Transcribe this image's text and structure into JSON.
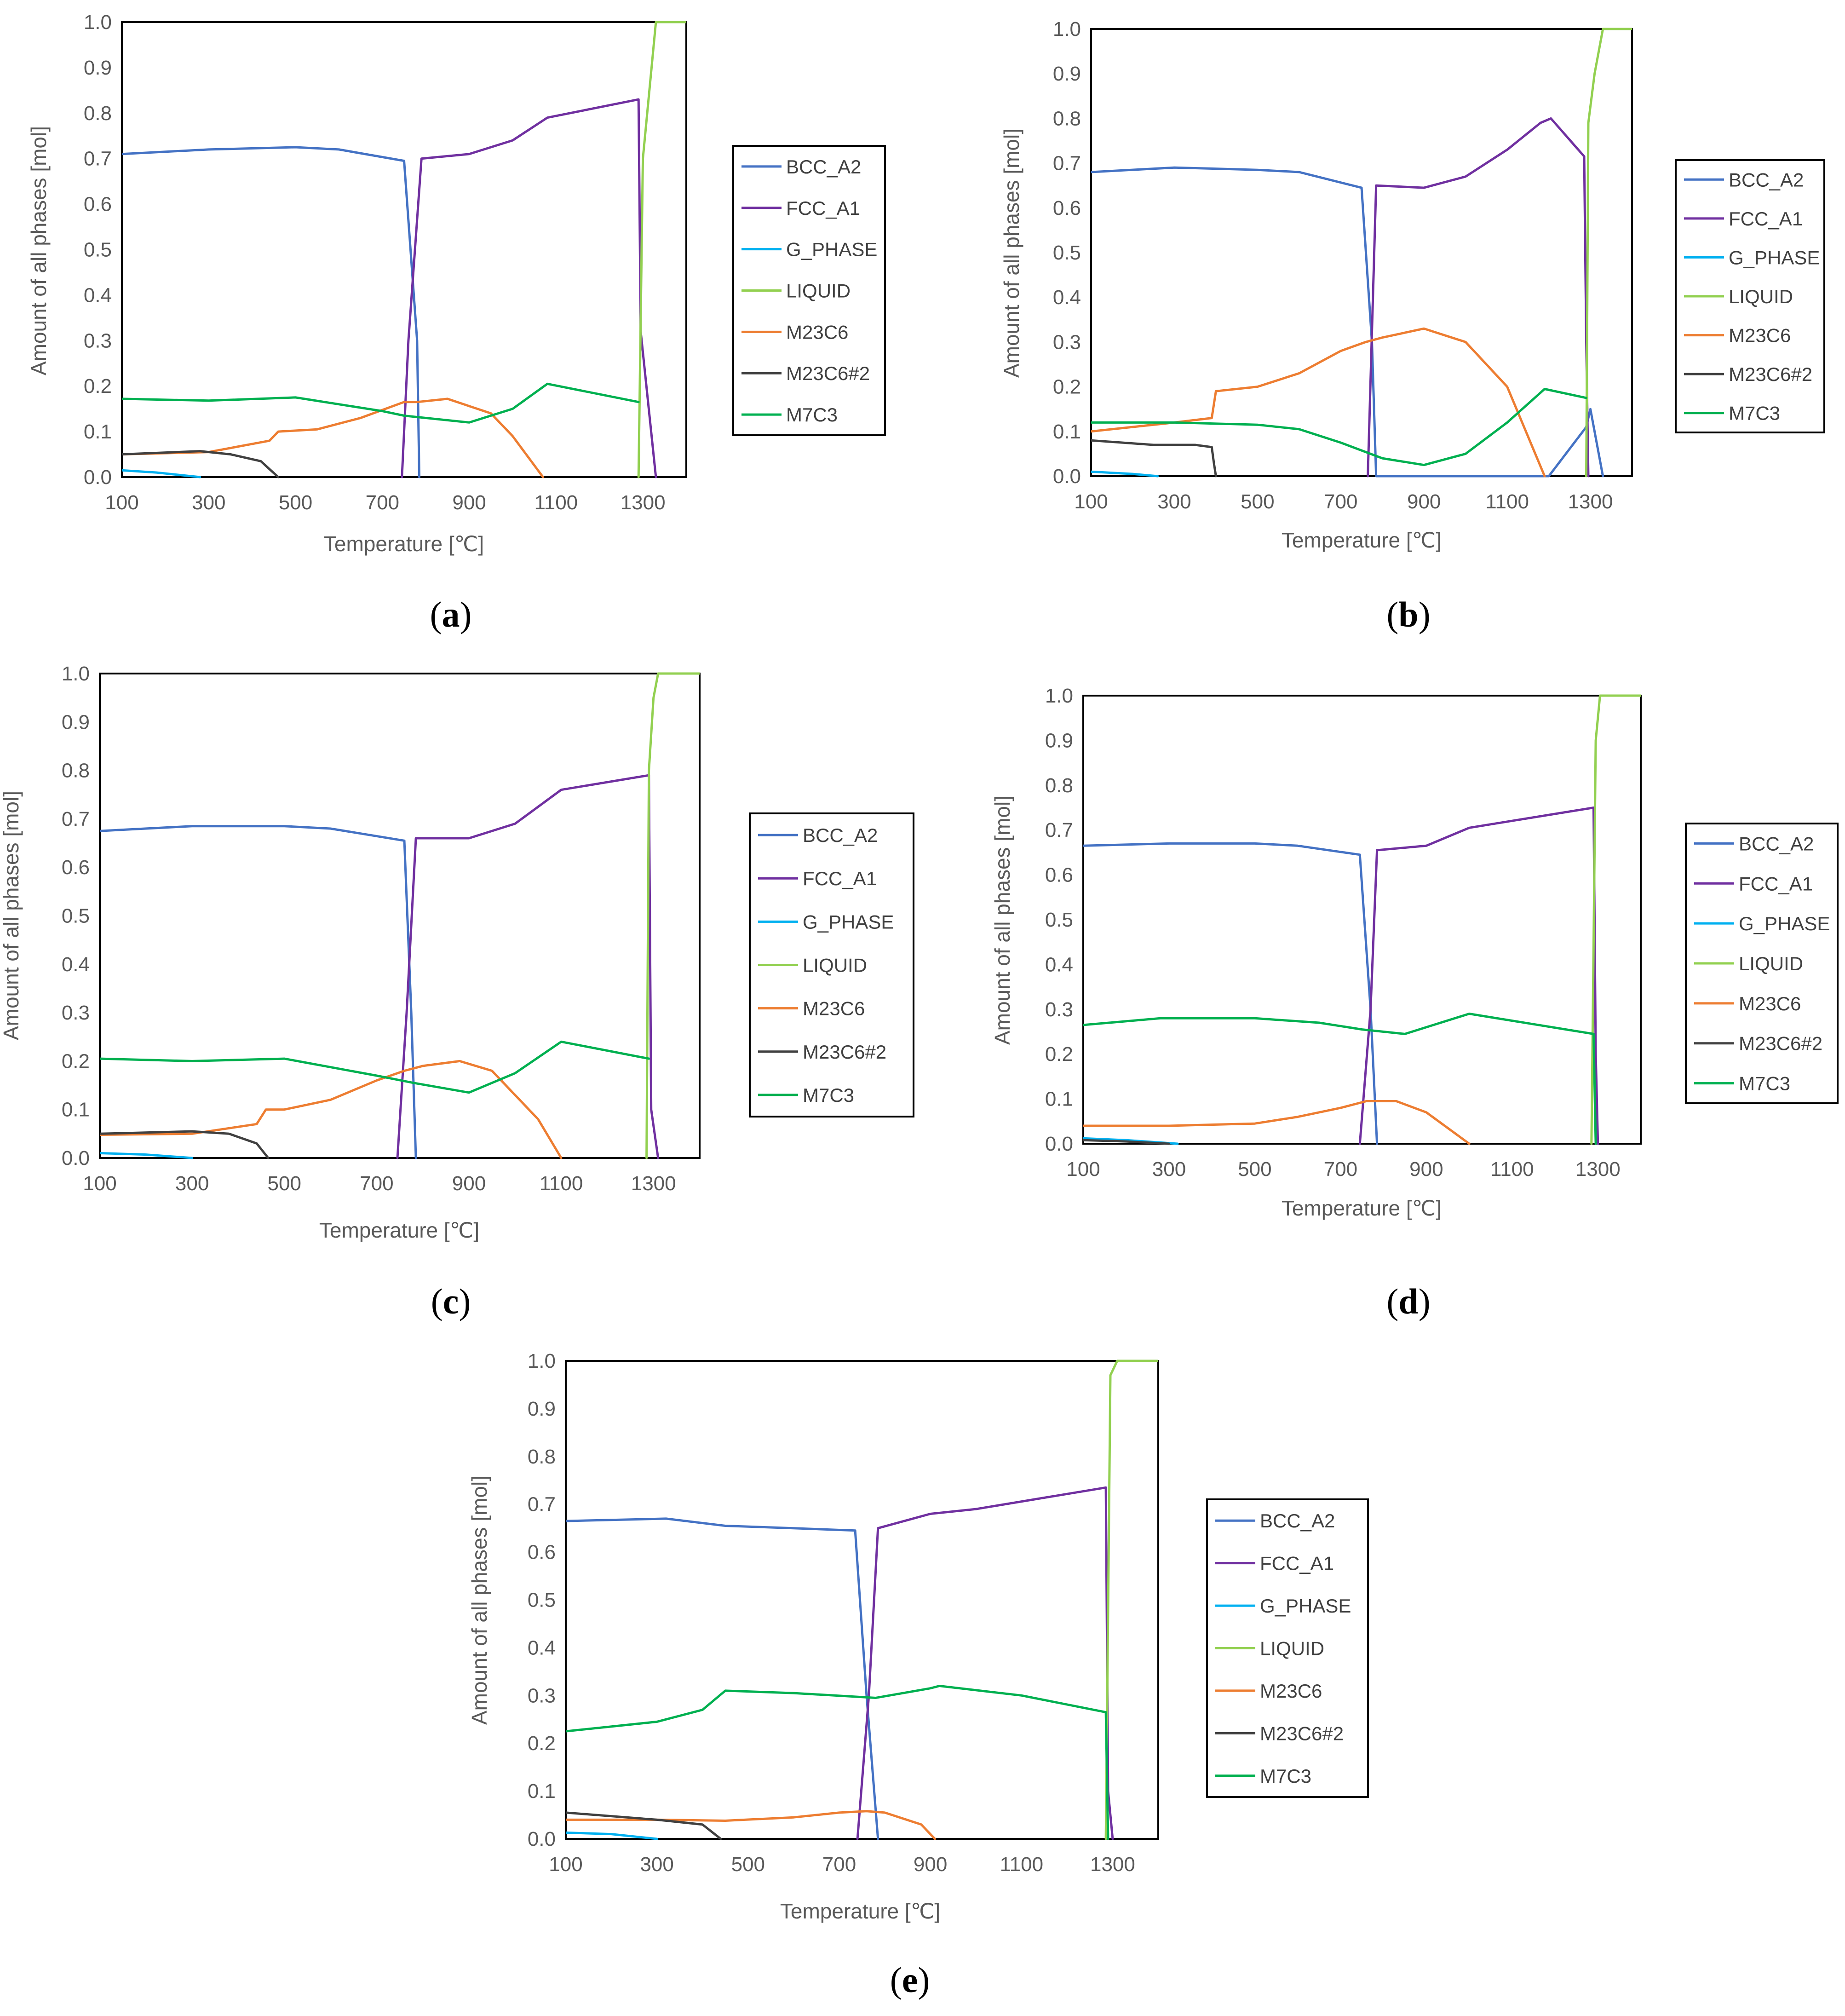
{
  "figure": {
    "series_colors": {
      "BCC_A2": "#4472C4",
      "FCC_A1": "#7030A0",
      "G_PHASE": "#00B0F0",
      "LIQUID": "#92D050",
      "M23C6": "#ED7D31",
      "M23C6#2": "#404040",
      "M7C3": "#00B050"
    }
  },
  "chart_data": [
    {
      "panel": "a",
      "type": "line",
      "xlabel": "Temperature [℃]",
      "ylabel": "Amount of all phases [mol]",
      "xlim": [
        100,
        1400
      ],
      "ylim": [
        0.0,
        1.0
      ],
      "x_tick_labels": [
        "100",
        "300",
        "500",
        "700",
        "900",
        "1100",
        "1300"
      ],
      "y_tick_labels": [
        "0.0",
        "0.1",
        "0.2",
        "0.3",
        "0.4",
        "0.5",
        "0.6",
        "0.7",
        "0.8",
        "0.9",
        "1.0"
      ],
      "legend": [
        "BCC_A2",
        "FCC_A1",
        "G_PHASE",
        "LIQUID",
        "M23C6",
        "M23C6#2",
        "M7C3"
      ],
      "legend_position": "right",
      "grid": false,
      "series": [
        {
          "name": "BCC_A2",
          "x": [
            100,
            300,
            500,
            600,
            750,
            780,
            785
          ],
          "y": [
            0.71,
            0.72,
            0.725,
            0.72,
            0.695,
            0.3,
            0.0
          ]
        },
        {
          "name": "FCC_A1",
          "x": [
            745,
            760,
            790,
            900,
            1000,
            1080,
            1290,
            1295,
            1330
          ],
          "y": [
            0.0,
            0.3,
            0.7,
            0.71,
            0.74,
            0.79,
            0.83,
            0.32,
            0.0
          ]
        },
        {
          "name": "G_PHASE",
          "x": [
            100,
            180,
            280
          ],
          "y": [
            0.015,
            0.01,
            0.0
          ]
        },
        {
          "name": "LIQUID",
          "x": [
            1290,
            1300,
            1320,
            1330,
            1400
          ],
          "y": [
            0.0,
            0.7,
            0.9,
            1.0,
            1.0
          ]
        },
        {
          "name": "M23C6",
          "x": [
            100,
            300,
            440,
            460,
            550,
            650,
            750,
            780,
            850,
            950,
            1000,
            1070
          ],
          "y": [
            0.05,
            0.055,
            0.08,
            0.1,
            0.105,
            0.13,
            0.165,
            0.165,
            0.172,
            0.14,
            0.09,
            0.0
          ]
        },
        {
          "name": "M23C6#2",
          "x": [
            100,
            280,
            350,
            420,
            460
          ],
          "y": [
            0.05,
            0.057,
            0.05,
            0.035,
            0.0
          ]
        },
        {
          "name": "M7C3",
          "x": [
            100,
            300,
            500,
            700,
            750,
            900,
            1000,
            1080,
            1290
          ],
          "y": [
            0.172,
            0.168,
            0.175,
            0.145,
            0.135,
            0.12,
            0.15,
            0.205,
            0.165
          ]
        }
      ]
    },
    {
      "panel": "b",
      "type": "line",
      "xlabel": "Temperature [℃]",
      "ylabel": "Amount of all phases [mol]",
      "xlim": [
        100,
        1400
      ],
      "ylim": [
        0.0,
        1.0
      ],
      "x_tick_labels": [
        "100",
        "300",
        "500",
        "700",
        "900",
        "1100",
        "1300"
      ],
      "y_tick_labels": [
        "0.0",
        "0.1",
        "0.2",
        "0.3",
        "0.4",
        "0.5",
        "0.6",
        "0.7",
        "0.8",
        "0.9",
        "1.0"
      ],
      "legend": [
        "BCC_A2",
        "FCC_A1",
        "G_PHASE",
        "LIQUID",
        "M23C6",
        "M23C6#2",
        "M7C3"
      ],
      "legend_position": "right",
      "grid": false,
      "series": [
        {
          "name": "BCC_A2",
          "x": [
            100,
            300,
            500,
            600,
            750,
            775,
            785,
            1200,
            1290,
            1300,
            1330
          ],
          "y": [
            0.68,
            0.69,
            0.685,
            0.68,
            0.645,
            0.3,
            0.0,
            0.0,
            0.11,
            0.15,
            0.0
          ]
        },
        {
          "name": "FCC_A1",
          "x": [
            765,
            785,
            900,
            1000,
            1100,
            1180,
            1205,
            1285,
            1290,
            1295
          ],
          "y": [
            0.0,
            0.65,
            0.645,
            0.67,
            0.73,
            0.79,
            0.8,
            0.715,
            0.3,
            0.0
          ]
        },
        {
          "name": "G_PHASE",
          "x": [
            100,
            200,
            260
          ],
          "y": [
            0.01,
            0.005,
            0.0
          ]
        },
        {
          "name": "LIQUID",
          "x": [
            1290,
            1295,
            1310,
            1330,
            1400
          ],
          "y": [
            0.0,
            0.79,
            0.9,
            1.0,
            1.0
          ]
        },
        {
          "name": "M23C6",
          "x": [
            100,
            300,
            390,
            400,
            500,
            600,
            700,
            760,
            800,
            900,
            1000,
            1100,
            1190
          ],
          "y": [
            0.1,
            0.12,
            0.13,
            0.19,
            0.2,
            0.23,
            0.28,
            0.3,
            0.31,
            0.33,
            0.3,
            0.2,
            0.0
          ]
        },
        {
          "name": "M23C6#2",
          "x": [
            100,
            250,
            350,
            390,
            395,
            400
          ],
          "y": [
            0.08,
            0.07,
            0.07,
            0.065,
            0.03,
            0.0
          ]
        },
        {
          "name": "M7C3",
          "x": [
            100,
            300,
            500,
            600,
            700,
            800,
            900,
            1000,
            1100,
            1190,
            1290
          ],
          "y": [
            0.12,
            0.12,
            0.115,
            0.105,
            0.075,
            0.04,
            0.025,
            0.05,
            0.12,
            0.195,
            0.175
          ]
        }
      ]
    },
    {
      "panel": "c",
      "type": "line",
      "xlabel": "Temperature [℃]",
      "ylabel": "Amount of all phases [mol]",
      "xlim": [
        100,
        1400
      ],
      "ylim": [
        0.0,
        1.0
      ],
      "x_tick_labels": [
        "100",
        "300",
        "500",
        "700",
        "900",
        "1100",
        "1300"
      ],
      "y_tick_labels": [
        "0.0",
        "0.1",
        "0.2",
        "0.3",
        "0.4",
        "0.5",
        "0.6",
        "0.7",
        "0.8",
        "0.9",
        "1.0"
      ],
      "legend": [
        "BCC_A2",
        "FCC_A1",
        "G_PHASE",
        "LIQUID",
        "M23C6",
        "M23C6#2",
        "M7C3"
      ],
      "legend_position": "right",
      "grid": false,
      "series": [
        {
          "name": "BCC_A2",
          "x": [
            100,
            300,
            500,
            600,
            760,
            775,
            785
          ],
          "y": [
            0.675,
            0.685,
            0.685,
            0.68,
            0.655,
            0.3,
            0.0
          ]
        },
        {
          "name": "FCC_A1",
          "x": [
            745,
            765,
            785,
            900,
            1000,
            1100,
            1290,
            1295,
            1310
          ],
          "y": [
            0.0,
            0.3,
            0.66,
            0.66,
            0.69,
            0.76,
            0.79,
            0.1,
            0.0
          ]
        },
        {
          "name": "G_PHASE",
          "x": [
            100,
            200,
            300
          ],
          "y": [
            0.01,
            0.007,
            0.0
          ]
        },
        {
          "name": "LIQUID",
          "x": [
            1285,
            1290,
            1300,
            1310,
            1400
          ],
          "y": [
            0.0,
            0.8,
            0.95,
            1.0,
            1.0
          ]
        },
        {
          "name": "M23C6",
          "x": [
            100,
            300,
            440,
            460,
            500,
            600,
            700,
            760,
            800,
            880,
            950,
            1050,
            1100
          ],
          "y": [
            0.048,
            0.05,
            0.07,
            0.1,
            0.1,
            0.12,
            0.16,
            0.18,
            0.19,
            0.2,
            0.18,
            0.08,
            0.0
          ]
        },
        {
          "name": "M23C6#2",
          "x": [
            100,
            300,
            380,
            440,
            465
          ],
          "y": [
            0.05,
            0.055,
            0.05,
            0.03,
            0.0
          ]
        },
        {
          "name": "M7C3",
          "x": [
            100,
            300,
            500,
            700,
            780,
            900,
            1000,
            1100,
            1290
          ],
          "y": [
            0.205,
            0.2,
            0.205,
            0.17,
            0.155,
            0.135,
            0.175,
            0.24,
            0.205
          ]
        }
      ]
    },
    {
      "panel": "d",
      "type": "line",
      "xlabel": "Temperature [℃]",
      "ylabel": "Amount of all phases [mol]",
      "xlim": [
        100,
        1400
      ],
      "ylim": [
        0.0,
        1.0
      ],
      "x_tick_labels": [
        "100",
        "300",
        "500",
        "700",
        "900",
        "1100",
        "1300"
      ],
      "y_tick_labels": [
        "0.0",
        "0.1",
        "0.2",
        "0.3",
        "0.4",
        "0.5",
        "0.6",
        "0.7",
        "0.8",
        "0.9",
        "1.0"
      ],
      "legend": [
        "BCC_A2",
        "FCC_A1",
        "G_PHASE",
        "LIQUID",
        "M23C6",
        "M23C6#2",
        "M7C3"
      ],
      "legend_position": "right",
      "grid": false,
      "series": [
        {
          "name": "BCC_A2",
          "x": [
            100,
            300,
            500,
            600,
            745,
            770,
            785
          ],
          "y": [
            0.665,
            0.67,
            0.67,
            0.665,
            0.645,
            0.3,
            0.0
          ]
        },
        {
          "name": "FCC_A1",
          "x": [
            745,
            770,
            785,
            900,
            1000,
            1290,
            1295,
            1300
          ],
          "y": [
            0.0,
            0.3,
            0.655,
            0.665,
            0.705,
            0.75,
            0.2,
            0.0
          ]
        },
        {
          "name": "G_PHASE",
          "x": [
            100,
            200,
            320
          ],
          "y": [
            0.012,
            0.008,
            0.0
          ]
        },
        {
          "name": "LIQUID",
          "x": [
            1285,
            1295,
            1305,
            1400
          ],
          "y": [
            0.0,
            0.9,
            1.0,
            1.0
          ]
        },
        {
          "name": "M23C6",
          "x": [
            100,
            300,
            500,
            600,
            700,
            760,
            830,
            900,
            1000
          ],
          "y": [
            0.04,
            0.04,
            0.045,
            0.06,
            0.08,
            0.095,
            0.095,
            0.07,
            0.0
          ]
        },
        {
          "name": "M23C6#2",
          "x": [
            100,
            200,
            300
          ],
          "y": [
            0.008,
            0.005,
            0.0
          ]
        },
        {
          "name": "M7C3",
          "x": [
            100,
            280,
            500,
            650,
            750,
            850,
            1000,
            1290,
            1295
          ],
          "y": [
            0.265,
            0.28,
            0.28,
            0.27,
            0.255,
            0.245,
            0.29,
            0.245,
            0.0
          ]
        }
      ]
    },
    {
      "panel": "e",
      "type": "line",
      "xlabel": "Temperature [℃]",
      "ylabel": "Amount of all phases [mol]",
      "xlim": [
        100,
        1400
      ],
      "ylim": [
        0.0,
        1.0
      ],
      "x_tick_labels": [
        "100",
        "300",
        "500",
        "700",
        "900",
        "1100",
        "1300"
      ],
      "y_tick_labels": [
        "0.0",
        "0.1",
        "0.2",
        "0.3",
        "0.4",
        "0.5",
        "0.6",
        "0.7",
        "0.8",
        "0.9",
        "1.0"
      ],
      "legend": [
        "BCC_A2",
        "FCC_A1",
        "G_PHASE",
        "LIQUID",
        "M23C6",
        "M23C6#2",
        "M7C3"
      ],
      "legend_position": "right",
      "grid": false,
      "series": [
        {
          "name": "BCC_A2",
          "x": [
            100,
            320,
            450,
            600,
            735,
            760,
            785
          ],
          "y": [
            0.665,
            0.67,
            0.655,
            0.65,
            0.645,
            0.3,
            0.0
          ]
        },
        {
          "name": "FCC_A1",
          "x": [
            740,
            765,
            785,
            900,
            1000,
            1285,
            1290,
            1300
          ],
          "y": [
            0.0,
            0.3,
            0.65,
            0.68,
            0.69,
            0.735,
            0.1,
            0.0
          ]
        },
        {
          "name": "G_PHASE",
          "x": [
            100,
            200,
            300
          ],
          "y": [
            0.013,
            0.01,
            0.0
          ]
        },
        {
          "name": "LIQUID",
          "x": [
            1285,
            1295,
            1310,
            1400
          ],
          "y": [
            0.0,
            0.97,
            1.0,
            1.0
          ]
        },
        {
          "name": "M23C6",
          "x": [
            100,
            300,
            450,
            600,
            700,
            760,
            800,
            880,
            910
          ],
          "y": [
            0.04,
            0.04,
            0.038,
            0.045,
            0.055,
            0.058,
            0.055,
            0.03,
            0.0
          ]
        },
        {
          "name": "M23C6#2",
          "x": [
            100,
            300,
            400,
            440
          ],
          "y": [
            0.055,
            0.04,
            0.03,
            0.0
          ]
        },
        {
          "name": "M7C3",
          "x": [
            100,
            300,
            400,
            450,
            600,
            780,
            900,
            920,
            1100,
            1285,
            1290
          ],
          "y": [
            0.225,
            0.245,
            0.27,
            0.31,
            0.305,
            0.295,
            0.315,
            0.32,
            0.3,
            0.265,
            0.0
          ]
        }
      ]
    }
  ]
}
